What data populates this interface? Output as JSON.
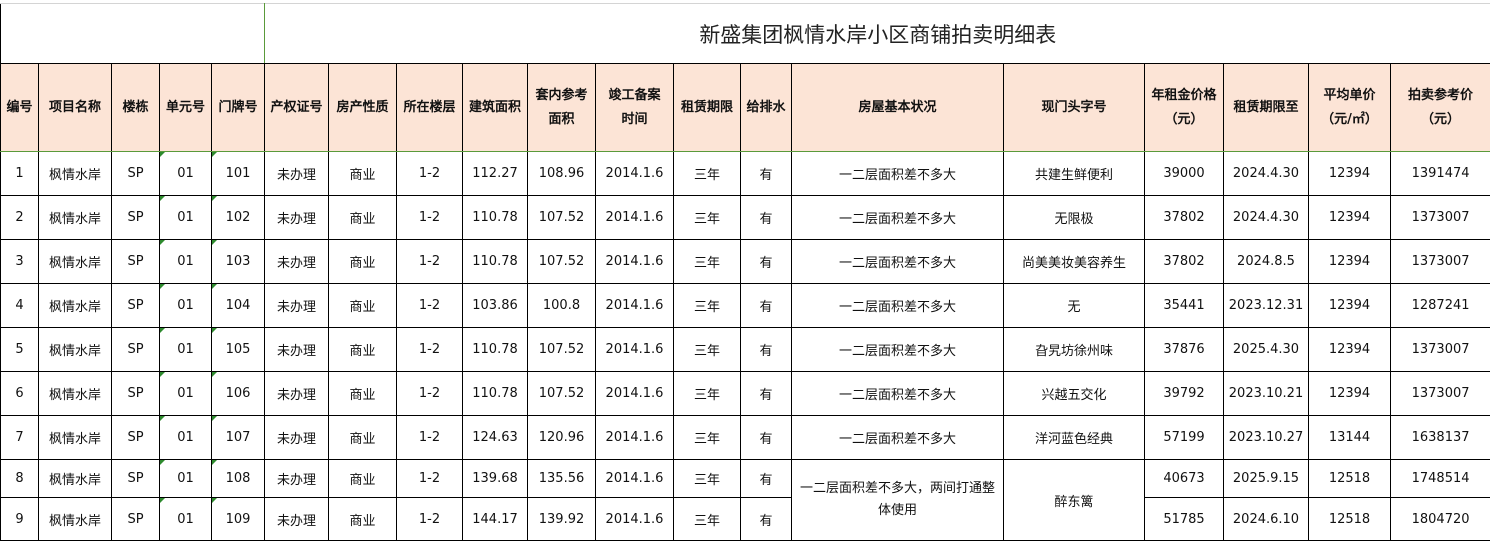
{
  "title": "新盛集团枫情水岸小区商铺拍卖明细表",
  "headers": [
    "编号",
    "项目名称",
    "楼栋",
    "单元号",
    "门牌号",
    "产权证号",
    "房产性质",
    "所在楼层",
    "建筑面积",
    "套内参考\n面积",
    "竣工备案\n时间",
    "租赁期限",
    "给排水",
    "房屋基本状况",
    "现门头字号",
    "年租金价格\n（元）",
    "租赁期限至",
    "平均单价\n（元/㎡）",
    "拍卖参考价\n（元）"
  ],
  "rows": [
    [
      "1",
      "枫情水岸",
      "SP",
      "01",
      "101",
      "未办理",
      "商业",
      "1-2",
      "112.27",
      "108.96",
      "2014.1.6",
      "三年",
      "有",
      "一二层面积差不多大",
      "共建生鲜便利",
      "39000",
      "2024.4.30",
      "12394",
      "1391474"
    ],
    [
      "2",
      "枫情水岸",
      "SP",
      "01",
      "102",
      "未办理",
      "商业",
      "1-2",
      "110.78",
      "107.52",
      "2014.1.6",
      "三年",
      "有",
      "一二层面积差不多大",
      "无限极",
      "37802",
      "2024.4.30",
      "12394",
      "1373007"
    ],
    [
      "3",
      "枫情水岸",
      "SP",
      "01",
      "103",
      "未办理",
      "商业",
      "1-2",
      "110.78",
      "107.52",
      "2014.1.6",
      "三年",
      "有",
      "一二层面积差不多大",
      "尚美美妆美容养生",
      "37802",
      "2024.8.5",
      "12394",
      "1373007"
    ],
    [
      "4",
      "枫情水岸",
      "SP",
      "01",
      "104",
      "未办理",
      "商业",
      "1-2",
      "103.86",
      "100.8",
      "2014.1.6",
      "三年",
      "有",
      "一二层面积差不多大",
      "无",
      "35441",
      "2023.12.31",
      "12394",
      "1287241"
    ],
    [
      "5",
      "枫情水岸",
      "SP",
      "01",
      "105",
      "未办理",
      "商业",
      "1-2",
      "110.78",
      "107.52",
      "2014.1.6",
      "三年",
      "有",
      "一二层面积差不多大",
      "旮旯坊徐州味",
      "37876",
      "2025.4.30",
      "12394",
      "1373007"
    ],
    [
      "6",
      "枫情水岸",
      "SP",
      "01",
      "106",
      "未办理",
      "商业",
      "1-2",
      "110.78",
      "107.52",
      "2014.1.6",
      "三年",
      "有",
      "一二层面积差不多大",
      "兴越五交化",
      "39792",
      "2023.10.21",
      "12394",
      "1373007"
    ],
    [
      "7",
      "枫情水岸",
      "SP",
      "01",
      "107",
      "未办理",
      "商业",
      "1-2",
      "124.63",
      "120.96",
      "2014.1.6",
      "三年",
      "有",
      "一二层面积差不多大",
      "洋河蓝色经典",
      "57199",
      "2023.10.27",
      "13144",
      "1638137"
    ],
    [
      "8",
      "枫情水岸",
      "SP",
      "01",
      "108",
      "未办理",
      "商业",
      "1-2",
      "139.68",
      "135.56",
      "2014.1.6",
      "三年",
      "有",
      "一二层面积差不多大，两间打通整体使用",
      "醉东篱",
      "40673",
      "2025.9.15",
      "12518",
      "1748514"
    ],
    [
      "9",
      "枫情水岸",
      "SP",
      "01",
      "109",
      "未办理",
      "商业",
      "1-2",
      "144.17",
      "139.92",
      "2014.1.6",
      "三年",
      "有",
      "",
      "",
      "51785",
      "2024.6.10",
      "12518",
      "1804720"
    ]
  ]
}
